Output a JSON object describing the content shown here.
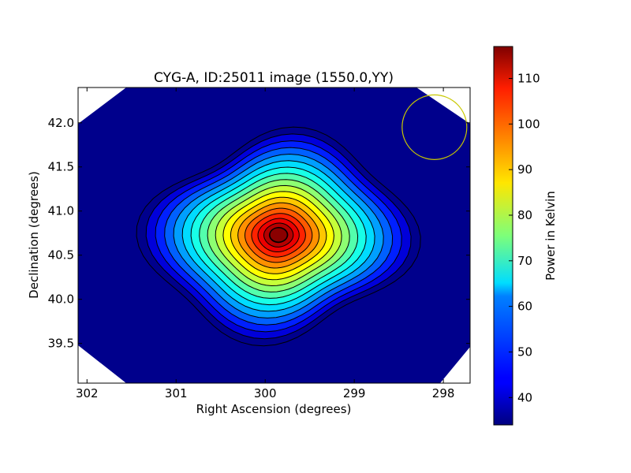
{
  "chart_data": {
    "type": "heatmap",
    "title": "CYG-A, ID:25011 image (1550.0,YY)",
    "xlabel": "Right Ascension (degrees)",
    "ylabel": "Declination (degrees)",
    "xlim": [
      302.1,
      297.7
    ],
    "ylim": [
      39.05,
      42.4
    ],
    "x_ticks": [
      302,
      301,
      300,
      299,
      298
    ],
    "x_tick_labels": [
      "302",
      "301",
      "300",
      "299",
      "298"
    ],
    "y_ticks": [
      39.5,
      40.0,
      40.5,
      41.0,
      41.5,
      42.0
    ],
    "y_tick_labels": [
      "39.5",
      "40.0",
      "40.5",
      "41.0",
      "41.5",
      "42.0"
    ],
    "colorbar": {
      "label": "Power in Kelvin",
      "range": [
        34,
        117
      ],
      "colormap": "jet",
      "ticks": [
        40,
        50,
        60,
        70,
        80,
        90,
        100,
        110
      ],
      "tick_labels": [
        "40",
        "50",
        "60",
        "70",
        "80",
        "90",
        "100",
        "110"
      ]
    },
    "source_peak": {
      "ra": 299.85,
      "dec": 40.73,
      "value": 117
    },
    "background_level": 35,
    "contour_count": 18,
    "beam_circle": {
      "ra": 298.1,
      "dec": 41.95,
      "color": "#c8c800"
    },
    "grid": false
  }
}
